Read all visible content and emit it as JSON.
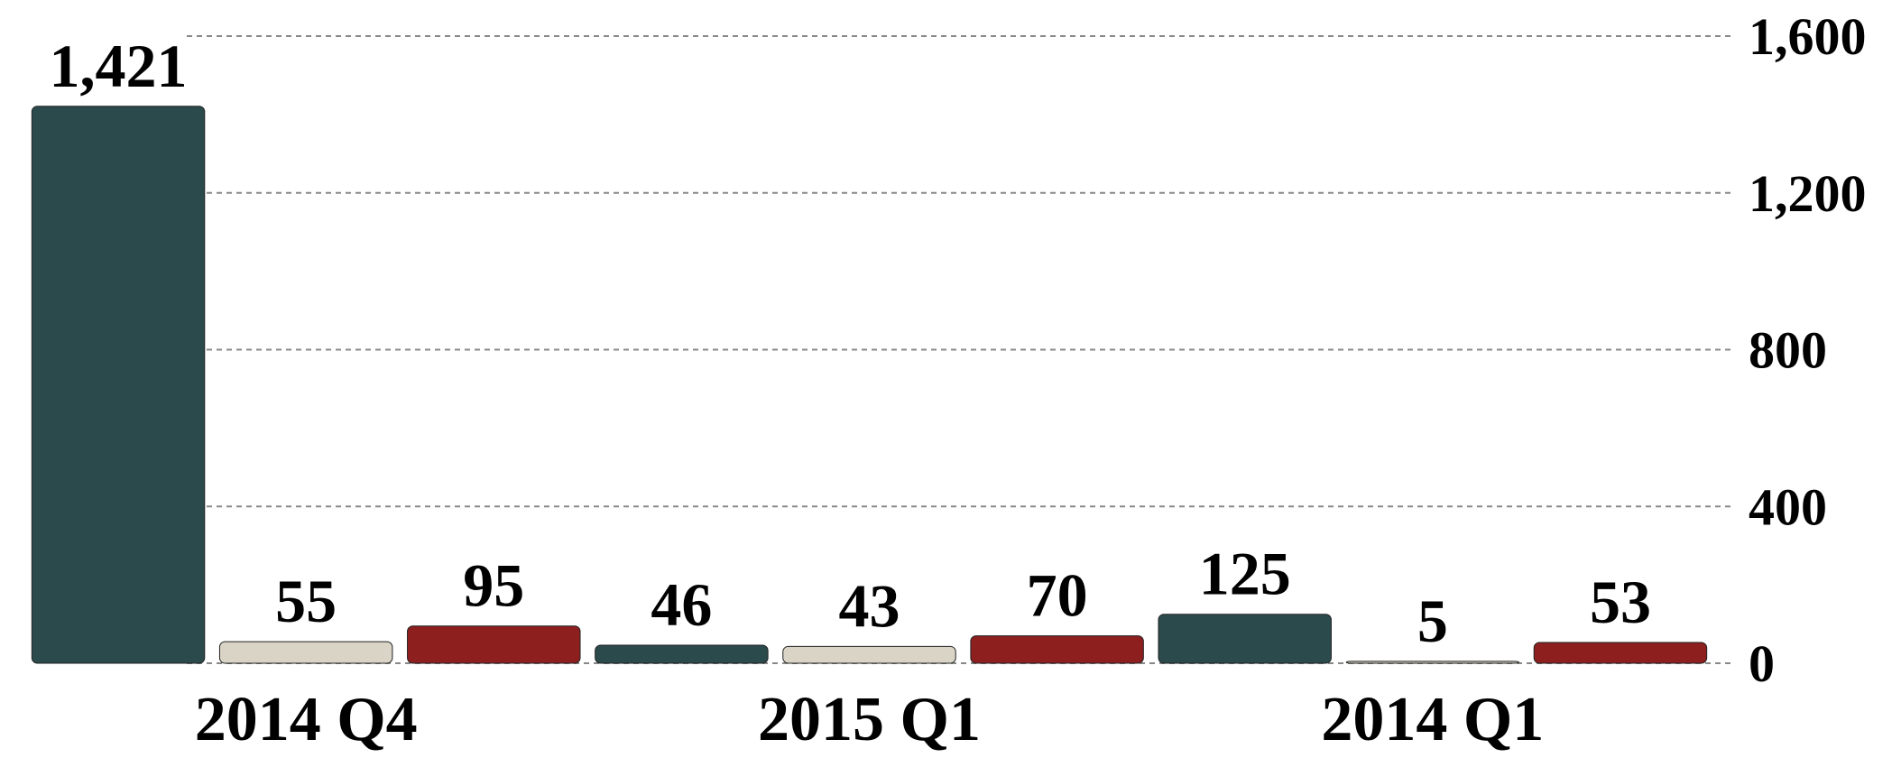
{
  "chart_data": {
    "type": "bar",
    "categories": [
      "2014 Q4",
      "2015 Q1",
      "2014 Q1"
    ],
    "series": [
      {
        "color": "#2b4a4c",
        "values": [
          1421,
          46,
          125
        ],
        "value_labels": [
          "1,421",
          "46",
          "125"
        ]
      },
      {
        "color": "#d9d4c6",
        "values": [
          55,
          43,
          5
        ]
      },
      {
        "color": "#8e1f1f",
        "values": [
          95,
          70,
          53
        ]
      }
    ],
    "ylim": [
      0,
      1600
    ],
    "yticks": [
      0,
      400,
      800,
      {
        "value": 1200,
        "label": "1,200"
      },
      {
        "value": 1600,
        "label": "1,600"
      }
    ],
    "grid": true,
    "y_axis_side": "right"
  }
}
